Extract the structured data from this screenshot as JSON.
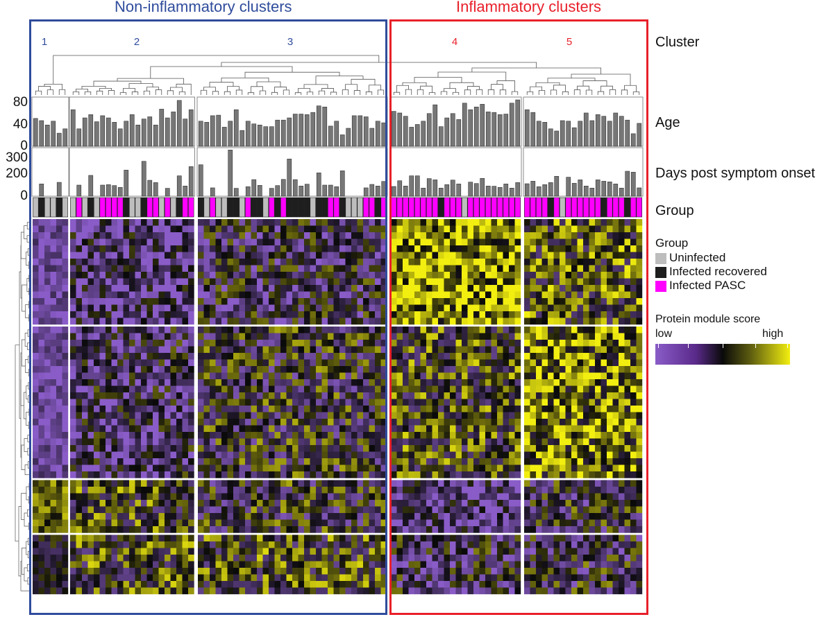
{
  "header": {
    "non_inflammatory_title": "Non-inflammatory clusters",
    "inflammatory_title": "Inflammatory clusters"
  },
  "row_labels": {
    "cluster": "Cluster",
    "age": "Age",
    "days": "Days post symptom onset",
    "group": "Group"
  },
  "axes": {
    "age_ticks": [
      "80",
      "40",
      "0"
    ],
    "days_ticks": [
      "300",
      "200",
      "0"
    ]
  },
  "legend": {
    "group_title": "Group",
    "groups": [
      {
        "code": "U",
        "label": "Uninfected",
        "color": "#bdbdbd"
      },
      {
        "code": "R",
        "label": "Infected recovered",
        "color": "#1e1e1e"
      },
      {
        "code": "P",
        "label": "Infected PASC",
        "color": "#ff00ff"
      }
    ],
    "score_title": "Protein module score",
    "score_low": "low",
    "score_high": "high",
    "score_colors": [
      "#8a5cc8",
      "#0a0a0a",
      "#f2ee10"
    ]
  },
  "colors": {
    "non_inflammatory": "#2f4c9c",
    "inflammatory": "#e8202a"
  },
  "chart_data": {
    "type": "heatmap",
    "age_range": [
      0,
      80
    ],
    "days_range": [
      0,
      300
    ],
    "row_blocks": [
      16,
      23,
      8,
      9
    ],
    "block_mean_scores": [
      [
        -0.8,
        -0.55,
        -0.3,
        0.7,
        0.2
      ],
      [
        -0.8,
        -0.4,
        -0.1,
        0.1,
        0.5
      ],
      [
        0.4,
        0.1,
        -0.1,
        -0.6,
        -0.2
      ],
      [
        -0.1,
        0.1,
        0.1,
        -0.3,
        -0.2
      ]
    ],
    "clusters": [
      {
        "label": "1",
        "type": "non_inflammatory",
        "age": [
          51,
          47,
          39,
          46,
          24,
          32
        ],
        "days": [
          null,
          107,
          null,
          null,
          121,
          null
        ],
        "group": [
          "U",
          "R",
          "U",
          "U",
          "R",
          "U"
        ]
      },
      {
        "label": "2",
        "type": "non_inflammatory",
        "age": [
          67,
          32,
          52,
          58,
          45,
          56,
          52,
          44,
          32,
          46,
          58,
          39,
          50,
          54,
          39,
          68,
          52,
          63,
          84,
          50,
          67
        ],
        "days": [
          null,
          97,
          null,
          182,
          null,
          97,
          101,
          93,
          77,
          228,
          null,
          null,
          305,
          139,
          119,
          null,
          69,
          null,
          178,
          89,
          259
        ],
        "group": [
          "U",
          "P",
          "U",
          "R",
          "U",
          "P",
          "P",
          "P",
          "P",
          "R",
          "U",
          "U",
          "R",
          "P",
          "P",
          "U",
          "P",
          "U",
          "R",
          "P",
          "P"
        ]
      },
      {
        "label": "3",
        "type": "non_inflammatory",
        "age": [
          46,
          44,
          56,
          57,
          35,
          46,
          67,
          29,
          46,
          41,
          39,
          36,
          36,
          48,
          48,
          52,
          59,
          59,
          58,
          62,
          74,
          72,
          37,
          46,
          21,
          33,
          56,
          56,
          54,
          33,
          46,
          43
        ],
        "days": [
          275,
          null,
          73,
          null,
          null,
          404,
          69,
          null,
          83,
          145,
          95,
          null,
          69,
          93,
          147,
          325,
          145,
          89,
          105,
          null,
          204,
          97,
          97,
          83,
          222,
          null,
          null,
          null,
          73,
          103,
          89,
          129
        ],
        "group": [
          "R",
          "U",
          "P",
          "U",
          "U",
          "R",
          "R",
          "U",
          "P",
          "R",
          "R",
          "U",
          "P",
          "R",
          "P",
          "R",
          "R",
          "R",
          "R",
          "U",
          "R",
          "R",
          "P",
          "P",
          "R",
          "U",
          "U",
          "U",
          "P",
          "P",
          "R",
          "P"
        ]
      },
      {
        "label": "4",
        "type": "inflammatory",
        "age": [
          64,
          61,
          55,
          35,
          40,
          46,
          60,
          76,
          36,
          52,
          60,
          49,
          79,
          67,
          72,
          77,
          63,
          62,
          58,
          59,
          79,
          85
        ],
        "days": [
          85,
          135,
          89,
          178,
          178,
          71,
          154,
          143,
          71,
          101,
          141,
          107,
          null,
          123,
          111,
          156,
          89,
          87,
          77,
          107,
          71,
          119
        ],
        "group": [
          "P",
          "P",
          "P",
          "P",
          "P",
          "P",
          "P",
          "P",
          "R",
          "P",
          "P",
          "P",
          "U",
          "P",
          "P",
          "P",
          "P",
          "P",
          "P",
          "P",
          "P",
          "P"
        ]
      },
      {
        "label": "5",
        "type": "inflammatory",
        "age": [
          67,
          62,
          46,
          44,
          32,
          28,
          47,
          46,
          34,
          46,
          61,
          47,
          58,
          55,
          46,
          61,
          55,
          48,
          23,
          42
        ],
        "days": [
          109,
          131,
          83,
          101,
          119,
          174,
          null,
          166,
          113,
          143,
          89,
          71,
          143,
          131,
          125,
          107,
          71,
          218,
          210,
          73
        ],
        "group": [
          "P",
          "P",
          "P",
          "P",
          "R",
          "P",
          "U",
          "P",
          "P",
          "P",
          "P",
          "P",
          "P",
          "R",
          "P",
          "P",
          "P",
          "R",
          "P",
          "P"
        ]
      }
    ]
  }
}
